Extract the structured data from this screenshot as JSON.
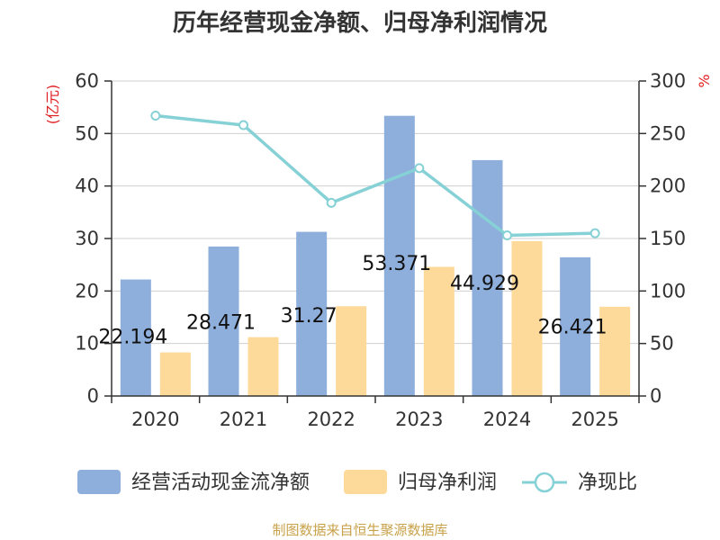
{
  "chart_data": {
    "type": "bar",
    "title": "历年经营现金净额、归母净利润情况",
    "categories": [
      "2020",
      "2021",
      "2022",
      "2023",
      "2024",
      "2025"
    ],
    "left_axis": {
      "unit": "(亿元)",
      "ylim": [
        0,
        60
      ],
      "ticks": [
        0,
        10,
        20,
        30,
        40,
        50,
        60
      ]
    },
    "right_axis": {
      "unit": "%",
      "ylim": [
        0,
        300
      ],
      "ticks": [
        0,
        50,
        100,
        150,
        200,
        250,
        300
      ]
    },
    "series": [
      {
        "name": "经营活动现金流净额",
        "type": "bar",
        "axis": "left",
        "values": [
          22.194,
          28.471,
          31.27,
          53.371,
          44.929,
          26.421
        ],
        "color": "#8eaedb",
        "data_labels": [
          "22.194",
          "28.471",
          "31.27",
          "53.371",
          "44.929",
          "26.421"
        ]
      },
      {
        "name": "归母净利润",
        "type": "bar",
        "axis": "left",
        "values": [
          8.3,
          11.2,
          17.1,
          24.6,
          29.5,
          17.0
        ],
        "color": "#fdd99a"
      },
      {
        "name": "净现比",
        "type": "line",
        "axis": "right",
        "values": [
          267,
          258,
          184,
          217,
          153,
          155
        ],
        "color": "#86d1d6"
      }
    ],
    "grid": true,
    "legend": "bottom",
    "source": "制图数据来自恒生聚源数据库"
  }
}
